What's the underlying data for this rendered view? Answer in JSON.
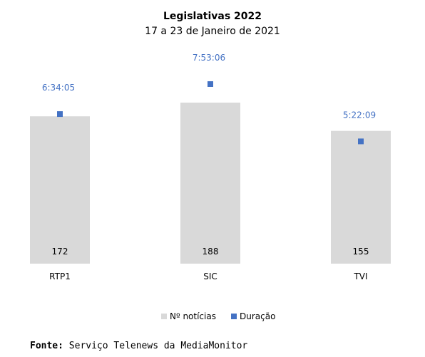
{
  "chart_data": {
    "type": "bar",
    "title": "Legislativas 2022",
    "subtitle": "17 a 23 de Janeiro de 2021",
    "categories": [
      "RTP1",
      "SIC",
      "TVI"
    ],
    "series": [
      {
        "name": "Nº notícias",
        "type": "bar",
        "values": [
          172,
          188,
          155
        ],
        "color": "#d9d9d9"
      },
      {
        "name": "Duração",
        "type": "scatter",
        "values": [
          "6:34:05",
          "7:53:06",
          "5:22:09"
        ],
        "values_seconds": [
          23645,
          28386,
          19329
        ],
        "color": "#4472c4"
      }
    ],
    "legend_position": "bottom",
    "grid": false
  },
  "source": {
    "label": "Fonte:",
    "text": "Serviço Telenews da MediaMonitor"
  }
}
